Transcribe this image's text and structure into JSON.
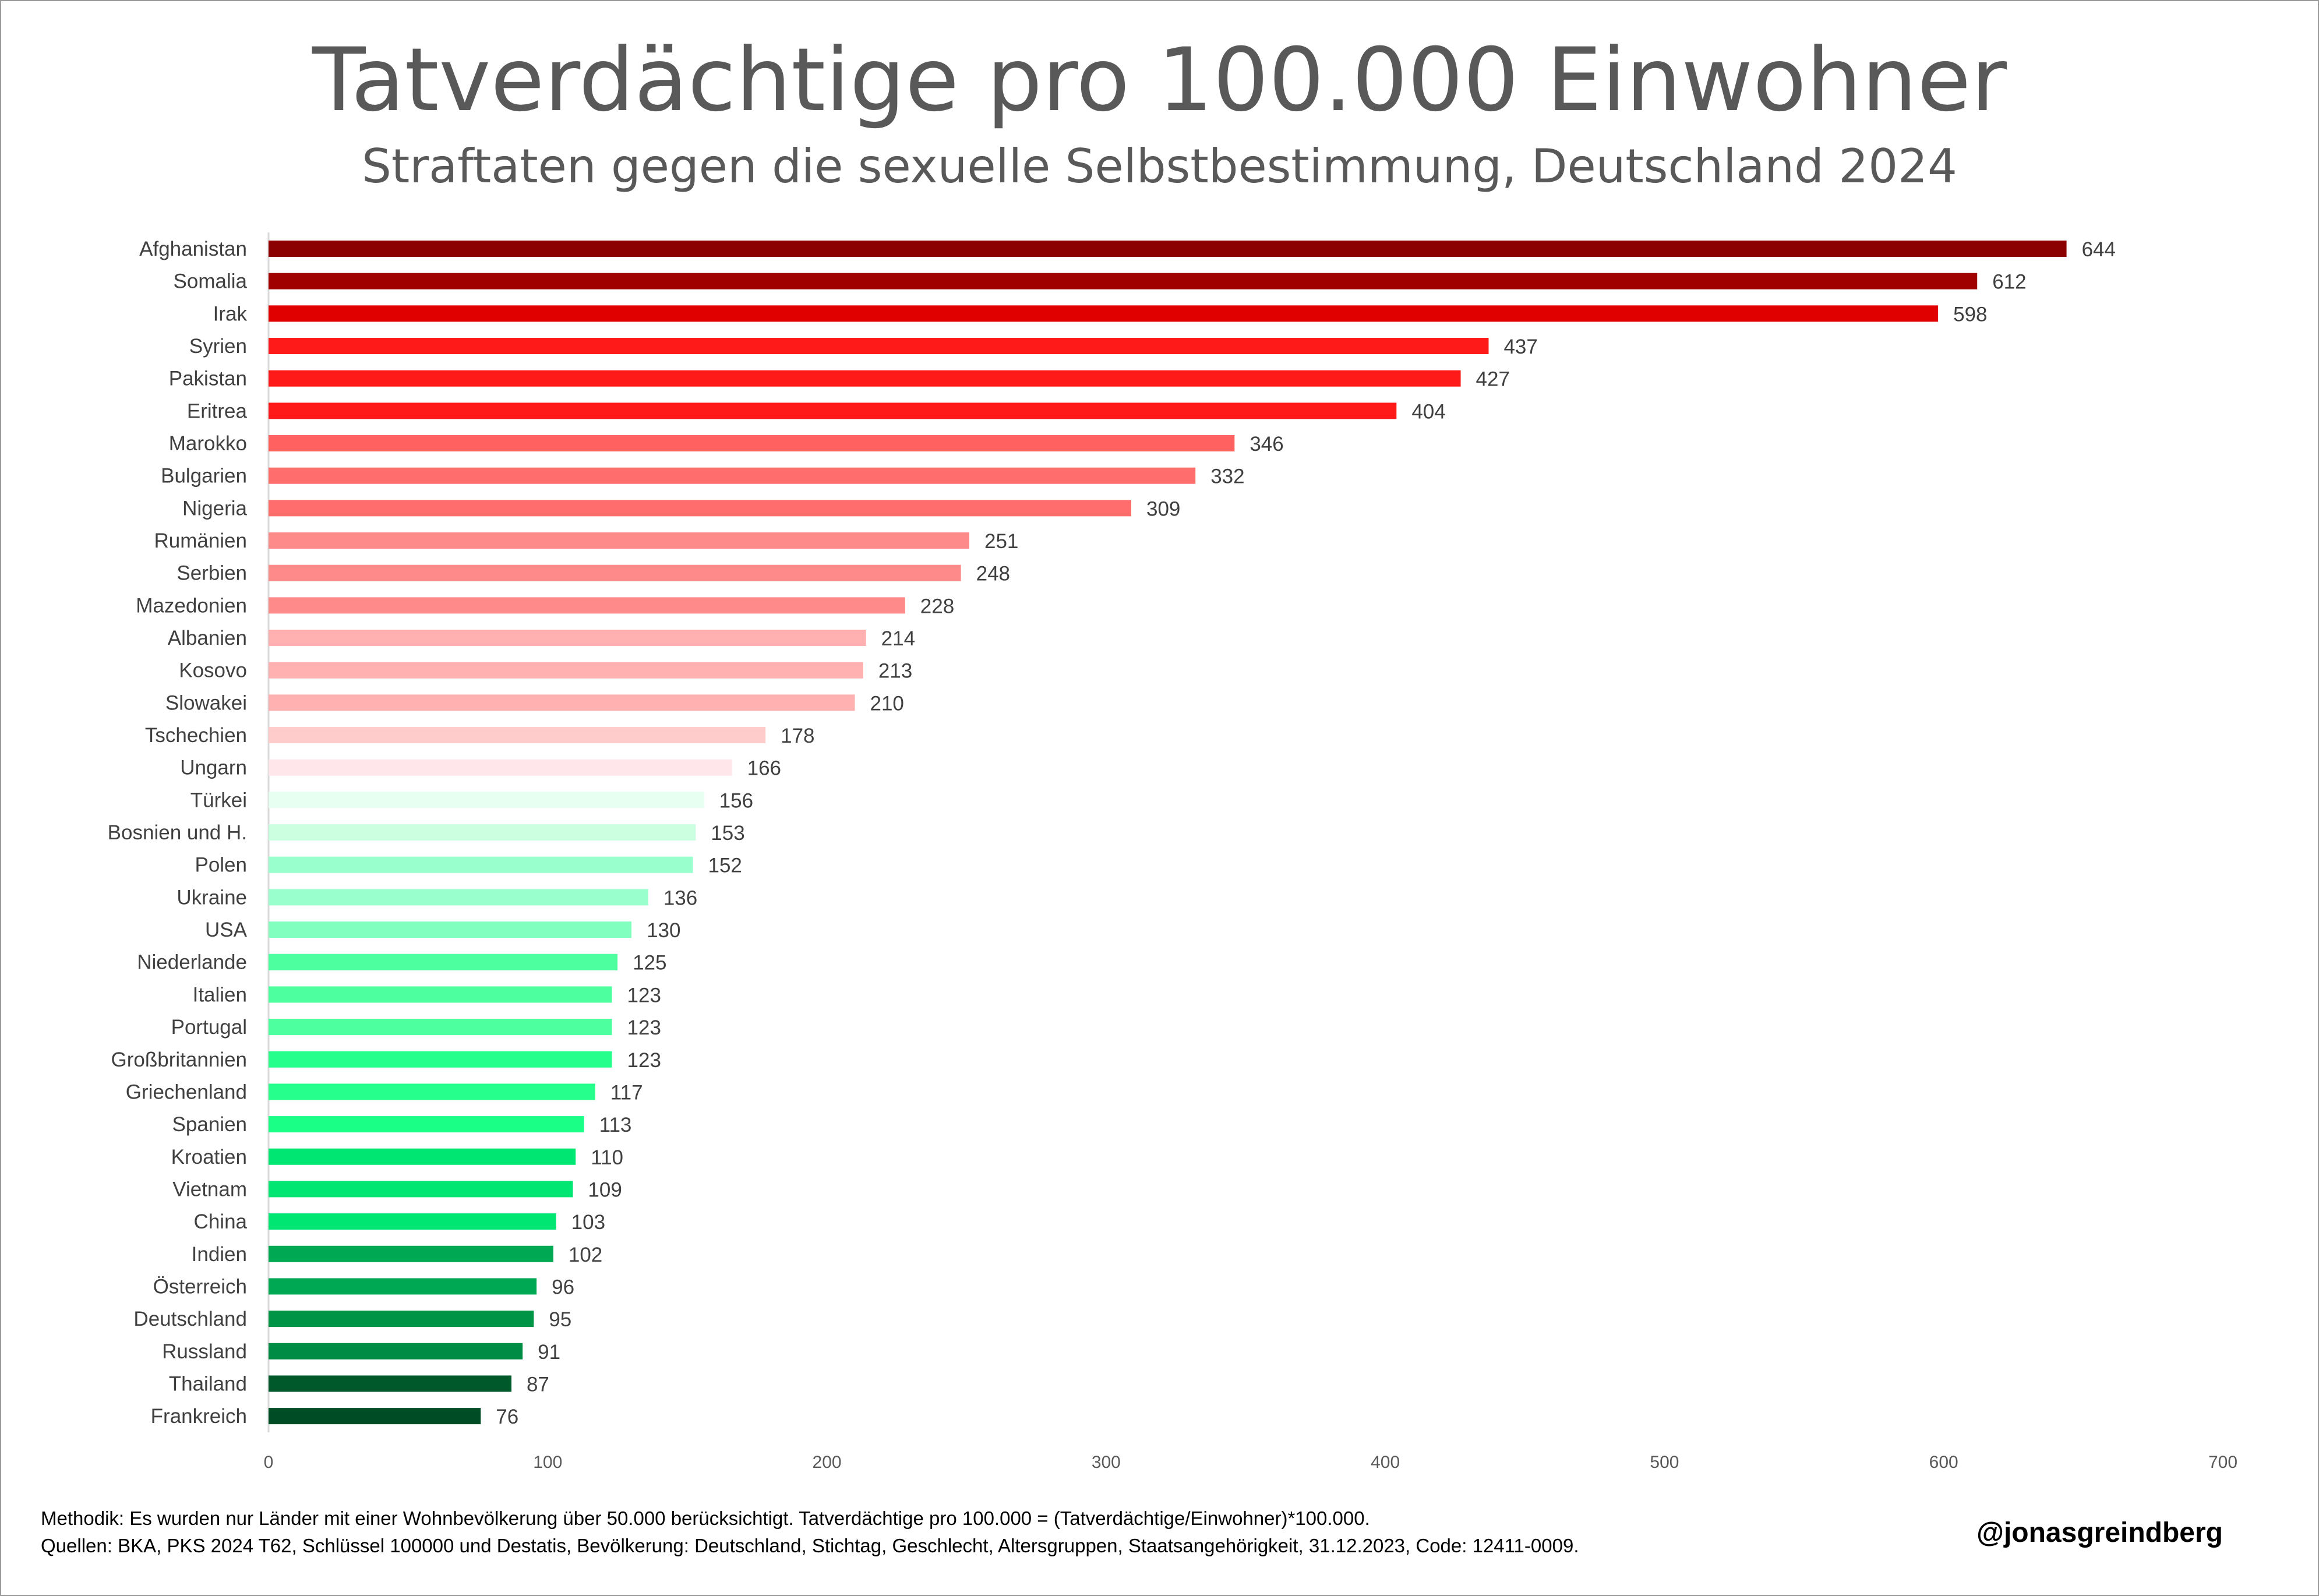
{
  "title": "Tatverdächtige pro 100.000 Einwohner",
  "subtitle": "Straftaten gegen die sexuelle Selbstbestimmung, Deutschland 2024",
  "footer": {
    "methodik": "Methodik: Es wurden nur Länder mit einer Wohnbevölkerung über 50.000 berücksichtigt. Tatverdächtige pro 100.000 = (Tatverdächtige/Einwohner)*100.000.",
    "quellen": "Quellen: BKA, PKS 2024 T62, Schlüssel 100000 und Destatis, Bevölkerung: Deutschland, Stichtag, Geschlecht, Altersgruppen, Staatsangehörigkeit, 31.12.2023, Code: 12411-0009.",
    "handle": "@jonasgreindberg"
  },
  "chart_data": {
    "type": "bar",
    "orientation": "horizontal",
    "title": "Tatverdächtige pro 100.000 Einwohner",
    "subtitle": "Straftaten gegen die sexuelle Selbstbestimmung, Deutschland 2024",
    "xlim": [
      0,
      700
    ],
    "xticks": [
      0,
      100,
      200,
      300,
      400,
      500,
      600,
      700
    ],
    "grid": false,
    "data_labels": true,
    "categories": [
      "Afghanistan",
      "Somalia",
      "Irak",
      "Syrien",
      "Pakistan",
      "Eritrea",
      "Marokko",
      "Bulgarien",
      "Nigeria",
      "Rumänien",
      "Serbien",
      "Mazedonien",
      "Albanien",
      "Kosovo",
      "Slowakei",
      "Tschechien",
      "Ungarn",
      "Türkei",
      "Bosnien und H.",
      "Polen",
      "Ukraine",
      "USA",
      "Niederlande",
      "Italien",
      "Portugal",
      "Großbritannien",
      "Griechenland",
      "Spanien",
      "Kroatien",
      "Vietnam",
      "China",
      "Indien",
      "Österreich",
      "Deutschland",
      "Russland",
      "Thailand",
      "Frankreich"
    ],
    "values": [
      644,
      612,
      598,
      437,
      427,
      404,
      346,
      332,
      309,
      251,
      248,
      228,
      214,
      213,
      210,
      178,
      166,
      156,
      153,
      152,
      136,
      130,
      125,
      123,
      123,
      123,
      117,
      113,
      110,
      109,
      103,
      102,
      96,
      95,
      91,
      87,
      76
    ],
    "colors": [
      "#8b0000",
      "#a00000",
      "#e00000",
      "#ff1a1a",
      "#ff1a1a",
      "#ff1a1a",
      "#ff6161",
      "#ff6d6d",
      "#ff6d6d",
      "#ff8a8a",
      "#ff8a8a",
      "#ff8a8a",
      "#ffb0b0",
      "#ffb0b0",
      "#ffb0b0",
      "#ffcccc",
      "#ffe6ea",
      "#e6fff0",
      "#ccffe0",
      "#99ffcc",
      "#99ffcc",
      "#80ffbf",
      "#4dff9f",
      "#4dff9f",
      "#4dff9f",
      "#26ff8c",
      "#26ff8c",
      "#1aff85",
      "#00e673",
      "#00e673",
      "#00e673",
      "#00a854",
      "#00a854",
      "#009447",
      "#008c44",
      "#00592b",
      "#004d25"
    ]
  }
}
